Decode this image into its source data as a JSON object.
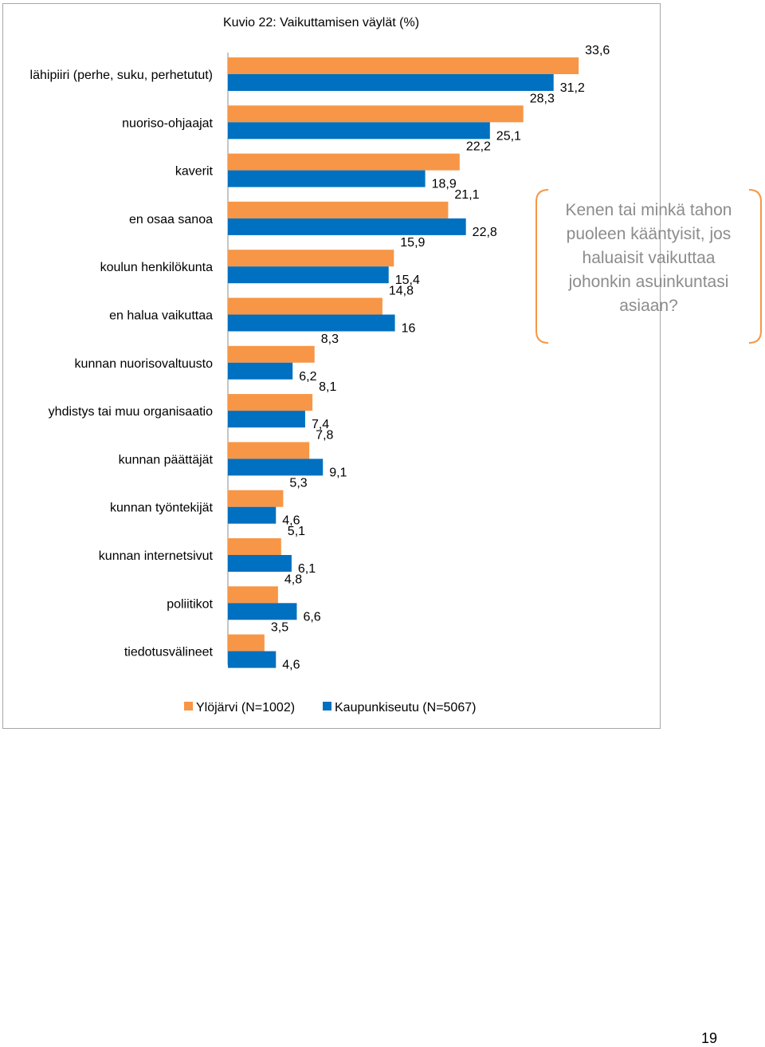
{
  "chart_data": {
    "type": "bar",
    "orientation": "horizontal",
    "title": "Kuvio 22: Vaikuttamisen väylät (%)",
    "categories": [
      "lähipiiri (perhe, suku, perhetutut)",
      "nuoriso-ohjaajat",
      "kaverit",
      "en osaa sanoa",
      "koulun henkilökunta",
      "en halua vaikuttaa",
      "kunnan nuorisovaltuusto",
      "yhdistys tai muu organisaatio",
      "kunnan päättäjät",
      "kunnan työntekijät",
      "kunnan internetsivut",
      "poliitikot",
      "tiedotusvälineet"
    ],
    "series": [
      {
        "name": "Ylöjärvi (N=1002)",
        "color": "#f79646",
        "values": [
          33.6,
          28.3,
          22.2,
          21.1,
          15.9,
          14.8,
          8.3,
          8.1,
          7.8,
          5.3,
          5.1,
          4.8,
          3.5
        ],
        "labels": [
          "33,6",
          "28,3",
          "22,2",
          "21,1",
          "15,9",
          "14,8",
          "8,3",
          "8,1",
          "7,8",
          "5,3",
          "5,1",
          "4,8",
          "3,5"
        ]
      },
      {
        "name": "Kaupunkiseutu (N=5067)",
        "color": "#0070c0",
        "values": [
          31.2,
          25.1,
          18.9,
          22.8,
          15.4,
          16,
          6.2,
          7.4,
          9.1,
          4.6,
          6.1,
          6.6,
          4.6
        ],
        "labels": [
          "31,2",
          "25,1",
          "18,9",
          "22,8",
          "15,4",
          "16",
          "6,2",
          "7,4",
          "9,1",
          "4,6",
          "6,1",
          "6,6",
          "4,6"
        ]
      }
    ],
    "legend_position": "bottom",
    "grid": false
  },
  "callout": {
    "text": "Kenen tai minkä tahon puoleen kääntyisit, jos haluaisit vaikuttaa johonkin asuinkuntasi asiaan?",
    "lines": [
      "Kenen tai minkä tahon",
      "puoleen kääntyisit, jos",
      "haluaisit vaikuttaa",
      "johonkin asuinkuntasi",
      "asiaan?"
    ],
    "text_color": "#8c8c8c",
    "bracket_color": "#f79646"
  },
  "page_number": "19"
}
